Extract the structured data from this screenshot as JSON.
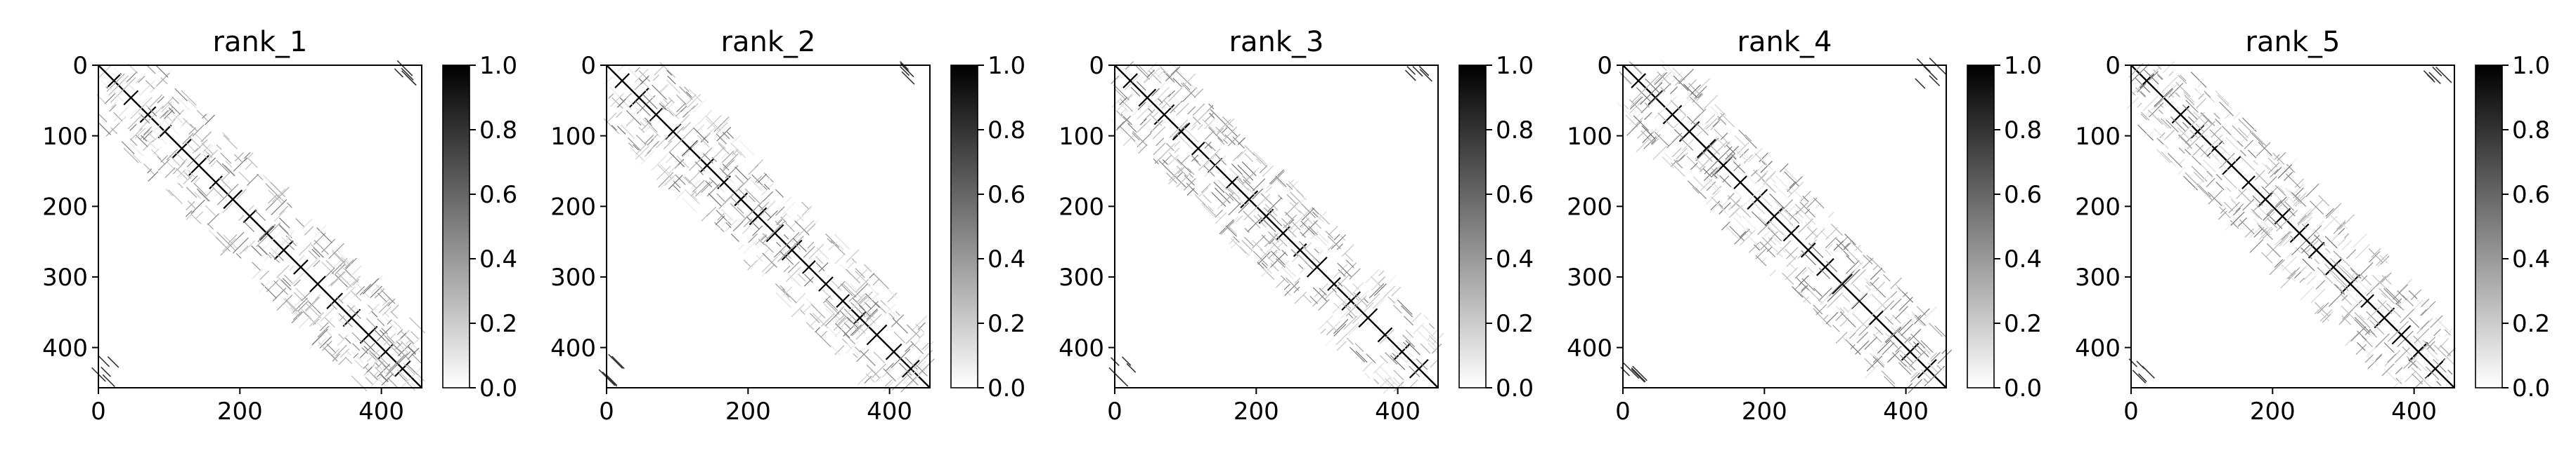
{
  "chart_data": [
    {
      "type": "heatmap",
      "title": "rank_1",
      "matrix_size": 457,
      "xlim": [
        0,
        457
      ],
      "ylim": [
        457,
        0
      ],
      "x_ticks": [
        0,
        200,
        400
      ],
      "y_ticks": [
        0,
        100,
        200,
        300,
        400
      ],
      "colorbar": {
        "range": [
          0.0,
          1.0
        ],
        "ticks": [
          "0.0",
          "0.2",
          "0.4",
          "0.6",
          "0.8",
          "1.0"
        ]
      },
      "colormap": [
        "#ffffff",
        "#000000"
      ]
    },
    {
      "type": "heatmap",
      "title": "rank_2",
      "matrix_size": 457,
      "xlim": [
        0,
        457
      ],
      "ylim": [
        457,
        0
      ],
      "x_ticks": [
        0,
        200,
        400
      ],
      "y_ticks": [
        0,
        100,
        200,
        300,
        400
      ],
      "colorbar": {
        "range": [
          0.0,
          1.0
        ],
        "ticks": [
          "0.0",
          "0.2",
          "0.4",
          "0.6",
          "0.8",
          "1.0"
        ]
      },
      "colormap": [
        "#ffffff",
        "#000000"
      ]
    },
    {
      "type": "heatmap",
      "title": "rank_3",
      "matrix_size": 457,
      "xlim": [
        0,
        457
      ],
      "ylim": [
        457,
        0
      ],
      "x_ticks": [
        0,
        200,
        400
      ],
      "y_ticks": [
        0,
        100,
        200,
        300,
        400
      ],
      "colorbar": {
        "range": [
          0.0,
          1.0
        ],
        "ticks": [
          "0.0",
          "0.2",
          "0.4",
          "0.6",
          "0.8",
          "1.0"
        ]
      },
      "colormap": [
        "#ffffff",
        "#000000"
      ]
    },
    {
      "type": "heatmap",
      "title": "rank_4",
      "matrix_size": 457,
      "xlim": [
        0,
        457
      ],
      "ylim": [
        457,
        0
      ],
      "x_ticks": [
        0,
        200,
        400
      ],
      "y_ticks": [
        0,
        100,
        200,
        300,
        400
      ],
      "colorbar": {
        "range": [
          0.0,
          1.0
        ],
        "ticks": [
          "0.0",
          "0.2",
          "0.4",
          "0.6",
          "0.8",
          "1.0"
        ]
      },
      "colormap": [
        "#ffffff",
        "#000000"
      ]
    },
    {
      "type": "heatmap",
      "title": "rank_5",
      "matrix_size": 457,
      "xlim": [
        0,
        457
      ],
      "ylim": [
        457,
        0
      ],
      "x_ticks": [
        0,
        200,
        400
      ],
      "y_ticks": [
        0,
        100,
        200,
        300,
        400
      ],
      "colorbar": {
        "range": [
          0.0,
          1.0
        ],
        "ticks": [
          "0.0",
          "0.2",
          "0.4",
          "0.6",
          "0.8",
          "1.0"
        ]
      },
      "colormap": [
        "#ffffff",
        "#000000"
      ]
    }
  ]
}
